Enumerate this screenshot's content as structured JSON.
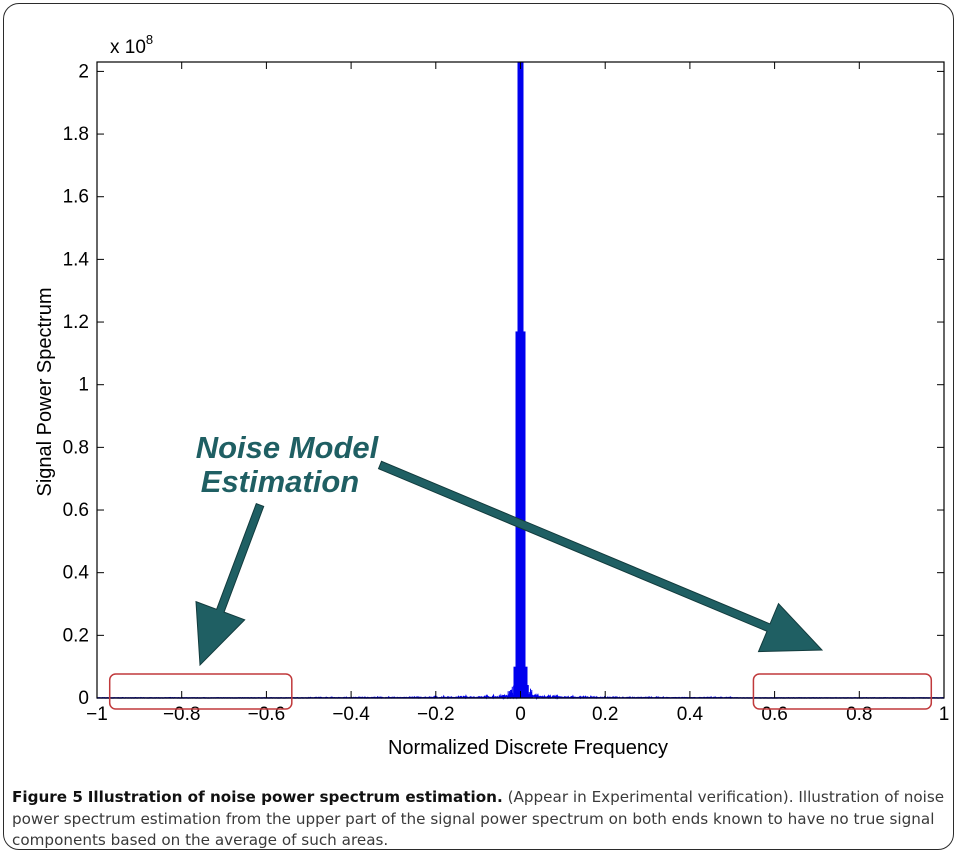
{
  "chart_data": {
    "type": "line",
    "title": "",
    "xlabel": "Normalized Discrete Frequency",
    "ylabel": "Signal Power Spectrum",
    "y_multiplier_label": "x 10",
    "y_multiplier_exponent": "8",
    "xlim": [
      -1,
      1
    ],
    "ylim": [
      0,
      2.03
    ],
    "xticks": [
      -1,
      -0.8,
      -0.6,
      -0.4,
      -0.2,
      0,
      0.2,
      0.4,
      0.6,
      0.8,
      1
    ],
    "xtick_labels": [
      "−1",
      "−0.8",
      "−0.6",
      "−0.4",
      "−0.2",
      "0",
      "0.2",
      "0.4",
      "0.6",
      "0.8",
      "1"
    ],
    "yticks": [
      0,
      0.2,
      0.4,
      0.6,
      0.8,
      1,
      1.2,
      1.4,
      1.6,
      1.8,
      2
    ],
    "ytick_labels": [
      "0",
      "0.2",
      "0.4",
      "0.6",
      "0.8",
      "1",
      "1.2",
      "1.4",
      "1.6",
      "1.8",
      "2"
    ],
    "grid": false,
    "series_color": "#0000ee",
    "peak": {
      "x": 0,
      "y": 2.03
    },
    "secondary_peak": {
      "x": 0,
      "y": 1.17
    },
    "noise_regions": [
      {
        "x_range": [
          -0.97,
          -0.54
        ]
      },
      {
        "x_range": [
          0.55,
          0.97
        ]
      }
    ],
    "annotation": {
      "text_line1": "Noise Model",
      "text_line2": "Estimation",
      "color": "#1f5f63",
      "arrow_color": "#1f5f63",
      "region_box_color": "#c0393b"
    }
  },
  "caption": {
    "figure_label": "Figure 5",
    "title": "Illustration of noise power spectrum estimation.",
    "body": "(Appear in Experimental verification). Illustration of noise power spectrum estimation from the upper part of the signal power spectrum on both ends known to have no true signal components based on the average of such areas."
  }
}
